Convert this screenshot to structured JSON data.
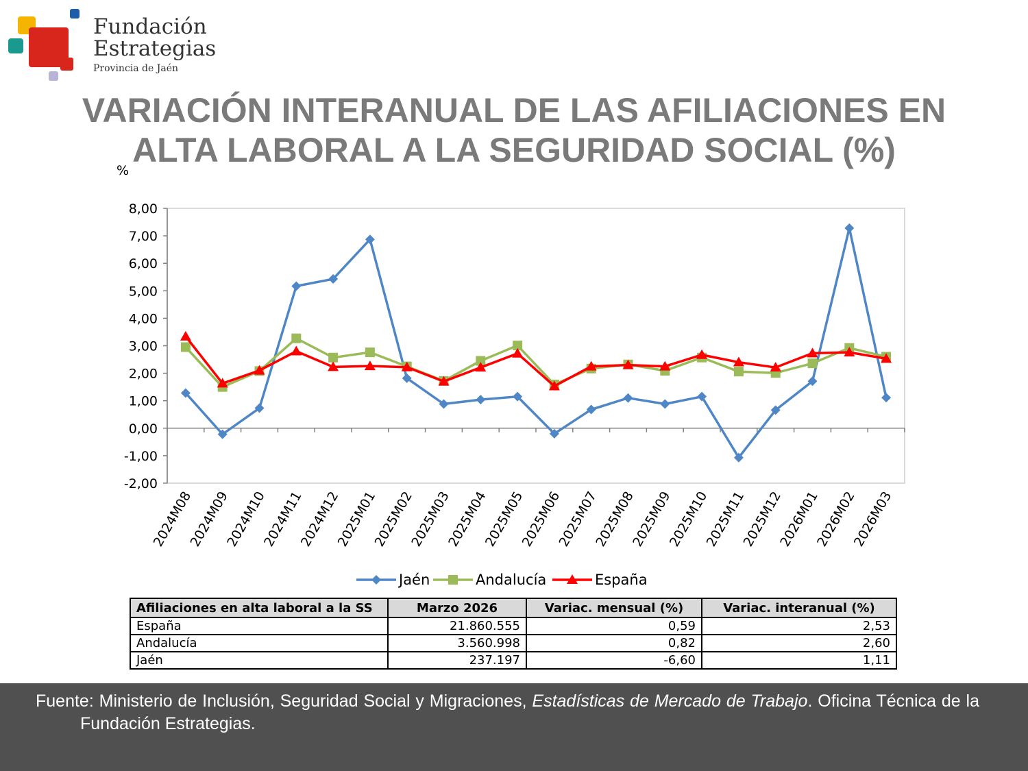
{
  "logo": {
    "line1": "Fundación",
    "line2": "Estrategias",
    "line3": "Provincia de Jaén",
    "colors": {
      "yellow": "#f4b400",
      "blue": "#1c5ea8",
      "teal": "#1a9a8e",
      "red": "#d9261c",
      "lilac": "#b9b3d6"
    }
  },
  "title_line1": "VARIACIÓN INTERANUAL DE LAS AFILIACIONES EN",
  "title_line2": "ALTA LABORAL A LA SEGURIDAD SOCIAL (%)",
  "chart_data": {
    "type": "line",
    "ylabel": "%",
    "ylim": [
      -2,
      8
    ],
    "yticks": [
      "8,00",
      "7,00",
      "6,00",
      "5,00",
      "4,00",
      "3,00",
      "2,00",
      "1,00",
      "0,00",
      "-1,00",
      "-2,00"
    ],
    "categories": [
      "2024M08",
      "2024M09",
      "2024M10",
      "2024M11",
      "2024M12",
      "2025M01",
      "2025M02",
      "2025M03",
      "2025M04",
      "2025M05",
      "2025M06",
      "2025M07",
      "2025M08",
      "2025M09",
      "2025M10",
      "2025M11",
      "2025M12",
      "2026M01",
      "2026M02",
      "2026M03"
    ],
    "series": [
      {
        "name": "Jaén",
        "color": "#4f86c6",
        "marker": "diamond",
        "values": [
          1.28,
          -0.22,
          0.73,
          5.17,
          5.43,
          6.87,
          1.82,
          0.88,
          1.04,
          1.15,
          -0.2,
          0.68,
          1.1,
          0.88,
          1.15,
          -1.07,
          0.66,
          1.71,
          7.28,
          1.11
        ]
      },
      {
        "name": "Andalucía",
        "color": "#9bbb59",
        "marker": "square",
        "values": [
          2.95,
          1.5,
          2.08,
          3.27,
          2.57,
          2.76,
          2.25,
          1.72,
          2.45,
          3.01,
          1.59,
          2.17,
          2.32,
          2.09,
          2.57,
          2.06,
          2.01,
          2.36,
          2.92,
          2.6
        ]
      },
      {
        "name": "España",
        "color": "#ff0000",
        "marker": "triangle",
        "values": [
          3.34,
          1.63,
          2.1,
          2.8,
          2.23,
          2.26,
          2.22,
          1.7,
          2.21,
          2.72,
          1.53,
          2.25,
          2.3,
          2.25,
          2.67,
          2.4,
          2.21,
          2.73,
          2.76,
          2.53
        ]
      }
    ],
    "legend": "bottom",
    "grid": false
  },
  "table": {
    "headers": [
      "Afiliaciones en alta laboral a la SS",
      "Marzo 2026",
      "Variac. mensual (%)",
      "Variac. interanual (%)"
    ],
    "rows": [
      [
        "España",
        "21.860.555",
        "0,59",
        "2,53"
      ],
      [
        "Andalucía",
        "3.560.998",
        "0,82",
        "2,60"
      ],
      [
        "Jaén",
        "237.197",
        "-6,60",
        "1,11"
      ]
    ]
  },
  "footer": {
    "text1": "Fuente: Ministerio de Inclusión, Seguridad Social y Migraciones, ",
    "italic": "Estadísticas de Mercado de Trabajo",
    "text2": ". Oficina Técnica de la Fundación Estrategias."
  }
}
